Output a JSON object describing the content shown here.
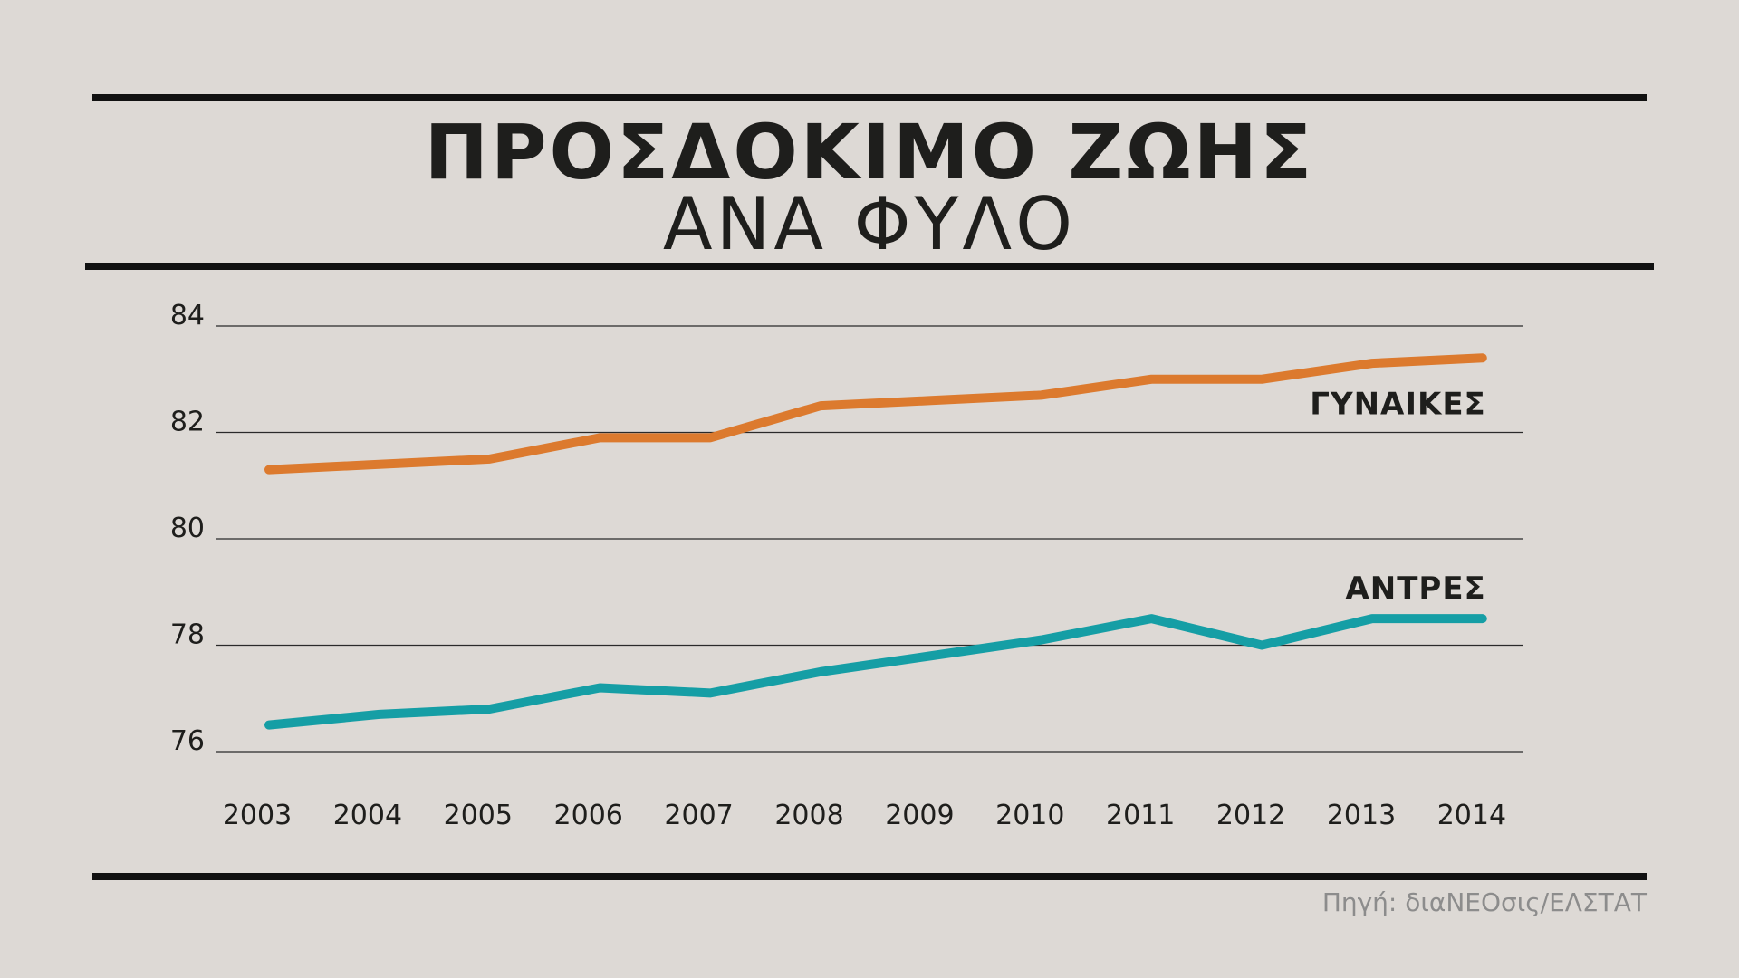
{
  "header": {
    "title": "ΠΡΟΣΔΟΚΙΜΟ ΖΩΗΣ",
    "subtitle": "ΑΝΑ ΦΥΛΟ"
  },
  "source": "Πηγή: διαΝΕΟσις/ΕΛΣΤΑΤ",
  "chart_data": {
    "type": "line",
    "title": "ΠΡΟΣΔΟΚΙΜΟ ΖΩΗΣ",
    "subtitle": "ΑΝΑ ΦΥΛΟ",
    "xlabel": "",
    "ylabel": "",
    "x": [
      "2003",
      "2004",
      "2005",
      "2006",
      "2007",
      "2008",
      "2009",
      "2010",
      "2011",
      "2012",
      "2013",
      "2014"
    ],
    "ylim": [
      76,
      84
    ],
    "yticks": [
      "76",
      "78",
      "80",
      "82",
      "84"
    ],
    "grid": true,
    "series": [
      {
        "name": "ΓΥΝΑΙΚΕΣ",
        "color": "#dc7a2e",
        "values": [
          81.3,
          81.4,
          81.5,
          81.9,
          81.9,
          82.5,
          82.6,
          82.7,
          83.0,
          83.0,
          83.3,
          83.4
        ]
      },
      {
        "name": "ΑΝΤΡΕΣ",
        "color": "#159ea5",
        "values": [
          76.5,
          76.7,
          76.8,
          77.2,
          77.1,
          77.5,
          77.8,
          78.1,
          78.5,
          78.0,
          78.5,
          78.5
        ]
      }
    ]
  }
}
